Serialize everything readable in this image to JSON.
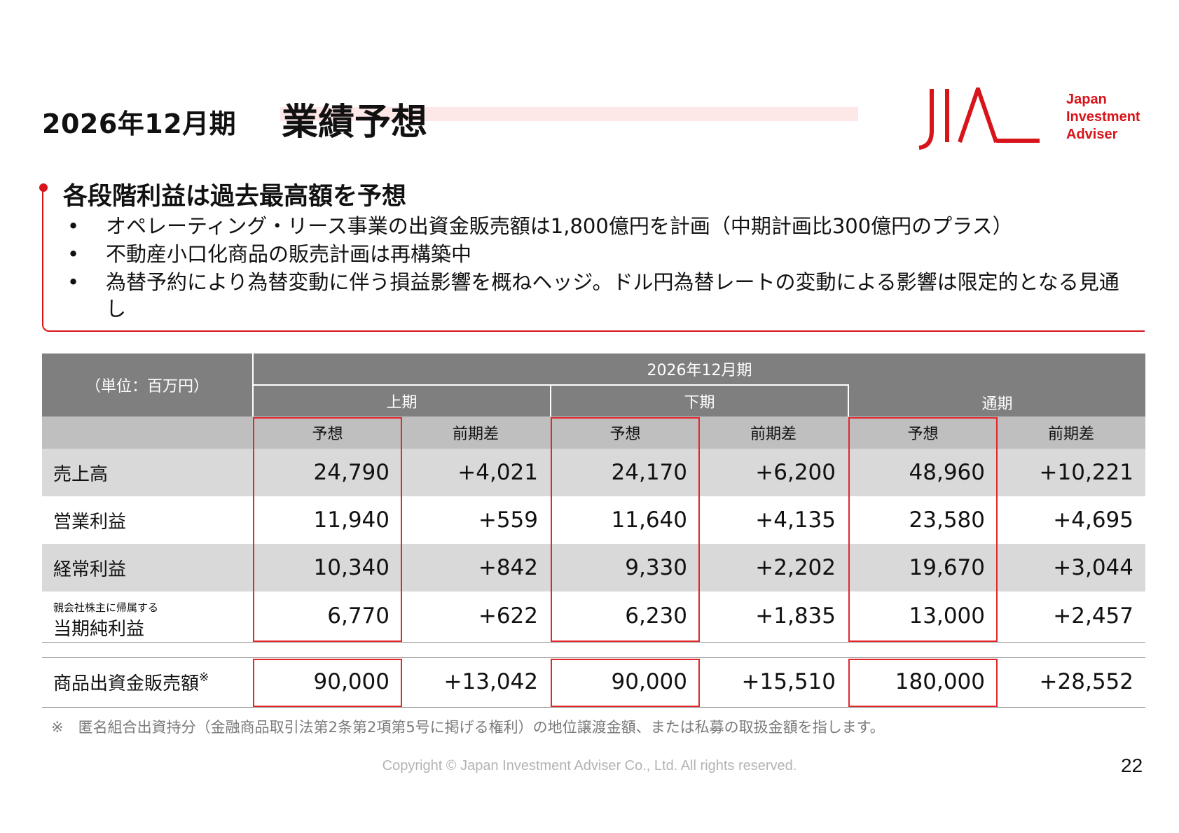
{
  "header": {
    "period": "2026年12月期",
    "title": "業績予想"
  },
  "logo": {
    "mark": "JIA",
    "text_lines": [
      "Japan",
      "Investment",
      "Adviser"
    ],
    "color": "#d7141a"
  },
  "summary": {
    "heading": "各段階利益は過去最高額を予想",
    "bullet_marker": "•",
    "bullets": [
      "オペレーティング・リース事業の出資金販売額は1,800億円を計画（中期計画比300億円のプラス）",
      "不動産小口化商品の販売計画は再構築中",
      "為替予約により為替変動に伴う損益影響を概ねヘッジ。ドル円為替レートの変動による影響は限定的となる見通し"
    ]
  },
  "table": {
    "unit": "（単位：百万円）",
    "fiscal_period": "2026年12月期",
    "halves": [
      "上期",
      "下期",
      "通期"
    ],
    "subheaders": [
      "予想",
      "前期差",
      "予想",
      "前期差",
      "予想",
      "前期差"
    ],
    "rows": [
      {
        "label_small": "",
        "label": "売上高",
        "values": [
          "24,790",
          "+4,021",
          "24,170",
          "+6,200",
          "48,960",
          "+10,221"
        ]
      },
      {
        "label_small": "",
        "label": "営業利益",
        "values": [
          "11,940",
          "+559",
          "11,640",
          "+4,135",
          "23,580",
          "+4,695"
        ]
      },
      {
        "label_small": "",
        "label": "経常利益",
        "values": [
          "10,340",
          "+842",
          "9,330",
          "+2,202",
          "19,670",
          "+3,044"
        ]
      },
      {
        "label_small": "親会社株主に帰属する",
        "label": "当期純利益",
        "values": [
          "6,770",
          "+622",
          "6,230",
          "+1,835",
          "13,000",
          "+2,457"
        ]
      }
    ],
    "extra_row": {
      "label": "商品出資金販売額",
      "label_mark": "※",
      "values": [
        "90,000",
        "+13,042",
        "90,000",
        "+15,510",
        "180,000",
        "+28,552"
      ]
    },
    "highlight_color": "#e5262b"
  },
  "footnote": "※　匿名組合出資持分（金融商品取引法第2条第2項第5号に掲げる権利）の地位譲渡金額、または私募の取扱金額を指します。",
  "footer": {
    "copyright": "Copyright © Japan Investment Adviser Co., Ltd. All rights reserved.",
    "page_number": "22"
  }
}
